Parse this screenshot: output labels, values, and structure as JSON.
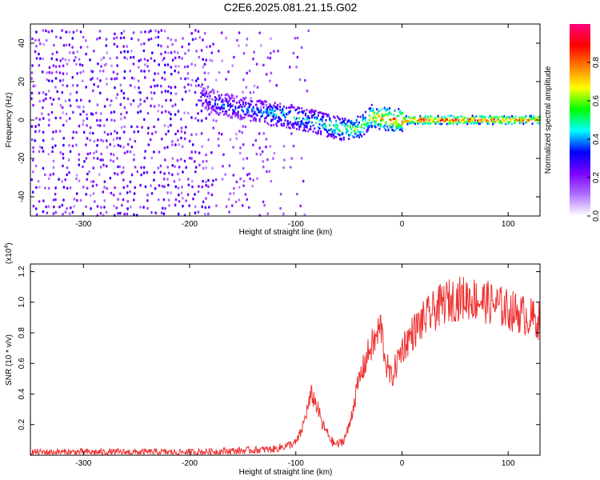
{
  "title": "C2E6.2025.081.21.15.G02",
  "chart_data": [
    {
      "type": "heatmap",
      "title": "C2E6.2025.081.21.15.G02",
      "xlabel": "Height of straight line (km)",
      "ylabel": "Frequency (Hz)",
      "xlim": [
        -350,
        130
      ],
      "ylim": [
        -50,
        50
      ],
      "xticks": [
        -300,
        -200,
        -100,
        0,
        100
      ],
      "yticks": [
        -40,
        -20,
        0,
        20,
        40
      ],
      "colorbar": {
        "label": "Normalized spectral amplitude",
        "range": [
          0,
          1
        ],
        "ticks": [
          0.0,
          0.2,
          0.4,
          0.6,
          0.8
        ],
        "colors": [
          "#ffffff",
          "#b070ff",
          "#7a00ff",
          "#0000ff",
          "#00ffff",
          "#00ff00",
          "#ffff00",
          "#ff8000",
          "#ff0000",
          "#ff0080"
        ]
      },
      "ridge": {
        "x": [
          -190,
          -170,
          -150,
          -130,
          -110,
          -90,
          -70,
          -55,
          -40,
          -30,
          -20,
          -10,
          0,
          20,
          50,
          80,
          110,
          130
        ],
        "y": [
          12,
          8,
          6,
          4,
          2,
          0,
          -3,
          -5,
          -4,
          2,
          1,
          0,
          0,
          0,
          0,
          0,
          0,
          0
        ],
        "amplitude": [
          0.3,
          0.4,
          0.4,
          0.45,
          0.5,
          0.5,
          0.55,
          0.6,
          0.65,
          0.75,
          0.8,
          0.85,
          0.9,
          0.95,
          0.95,
          0.95,
          0.9,
          0.85
        ]
      },
      "noise_region": [
        -350,
        -120
      ]
    },
    {
      "type": "line",
      "xlabel": "Height of straight line (km)",
      "ylabel": "SNR (10 * v/v)",
      "y_multiplier": "(x10",
      "y_multiplier_exp": "4",
      "y_multiplier_close": ")",
      "xlim": [
        -350,
        130
      ],
      "ylim": [
        0,
        1.25
      ],
      "xticks": [
        -300,
        -200,
        -100,
        0,
        100
      ],
      "yticks": [
        0.2,
        0.4,
        0.6,
        0.8,
        1.0,
        1.2
      ],
      "color": "#ee3333",
      "x": [
        -350,
        -300,
        -250,
        -200,
        -150,
        -120,
        -100,
        -95,
        -90,
        -85,
        -80,
        -75,
        -70,
        -65,
        -60,
        -55,
        -50,
        -45,
        -40,
        -35,
        -30,
        -25,
        -20,
        -15,
        -10,
        -5,
        0,
        10,
        20,
        30,
        40,
        50,
        60,
        70,
        80,
        90,
        100,
        110,
        120,
        130
      ],
      "y": [
        0.02,
        0.02,
        0.02,
        0.02,
        0.03,
        0.04,
        0.08,
        0.15,
        0.28,
        0.4,
        0.32,
        0.2,
        0.14,
        0.08,
        0.07,
        0.1,
        0.18,
        0.35,
        0.5,
        0.6,
        0.7,
        0.75,
        0.85,
        0.6,
        0.5,
        0.6,
        0.7,
        0.8,
        0.88,
        0.94,
        1.0,
        1.02,
        1.03,
        1.02,
        1.0,
        0.98,
        0.95,
        0.93,
        0.9,
        0.88
      ]
    }
  ]
}
